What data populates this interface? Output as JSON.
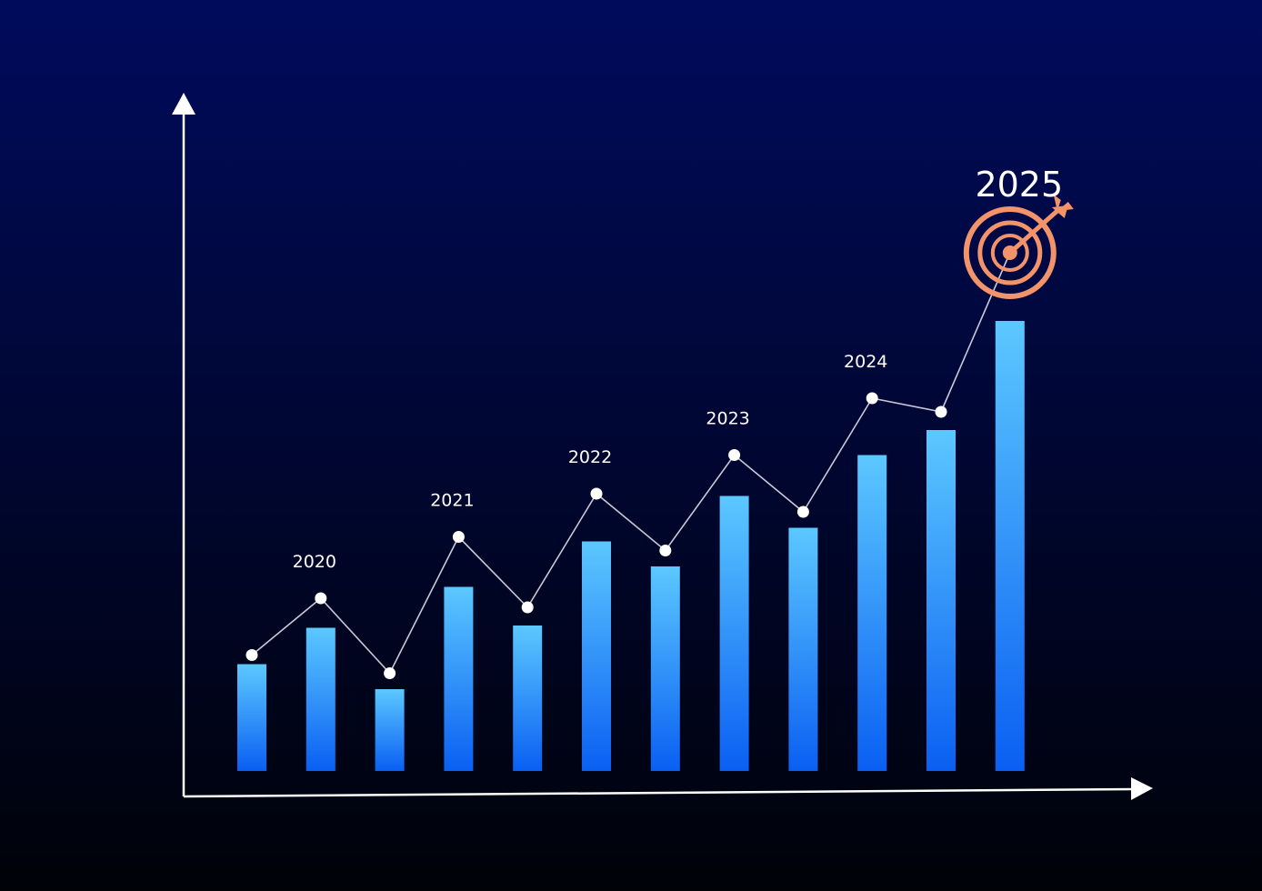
{
  "chart_data": {
    "type": "bar",
    "x": [
      1,
      2,
      3,
      4,
      5,
      6,
      7,
      8,
      9,
      10,
      11,
      12
    ],
    "series": [
      {
        "type": "bar",
        "values": [
          47,
          63,
          36,
          81,
          64,
          101,
          90,
          121,
          107,
          139,
          150,
          198
        ]
      },
      {
        "type": "line",
        "values": [
          51,
          76,
          43,
          103,
          72,
          122,
          97,
          139,
          114,
          164,
          158,
          228
        ]
      }
    ],
    "annotations": [
      {
        "text": "2020",
        "at": 2
      },
      {
        "text": "2021",
        "at": 4
      },
      {
        "text": "2022",
        "at": 6
      },
      {
        "text": "2023",
        "at": 8
      },
      {
        "text": "2024",
        "at": 10
      },
      {
        "text": "2025",
        "at": 12,
        "highlight": true
      }
    ],
    "ylim": [
      0,
      280
    ],
    "grid": false,
    "colors": {
      "background_top": "#000b5c",
      "background_bottom": "#000208",
      "bar_top": "#5cc8ff",
      "bar_bottom": "#0a5ff2",
      "line": "#c8c8d6",
      "marker": "#ffffff",
      "axis": "#ffffff",
      "target": "#f3936a"
    },
    "icons": {
      "target": "target-arrow-icon"
    }
  }
}
